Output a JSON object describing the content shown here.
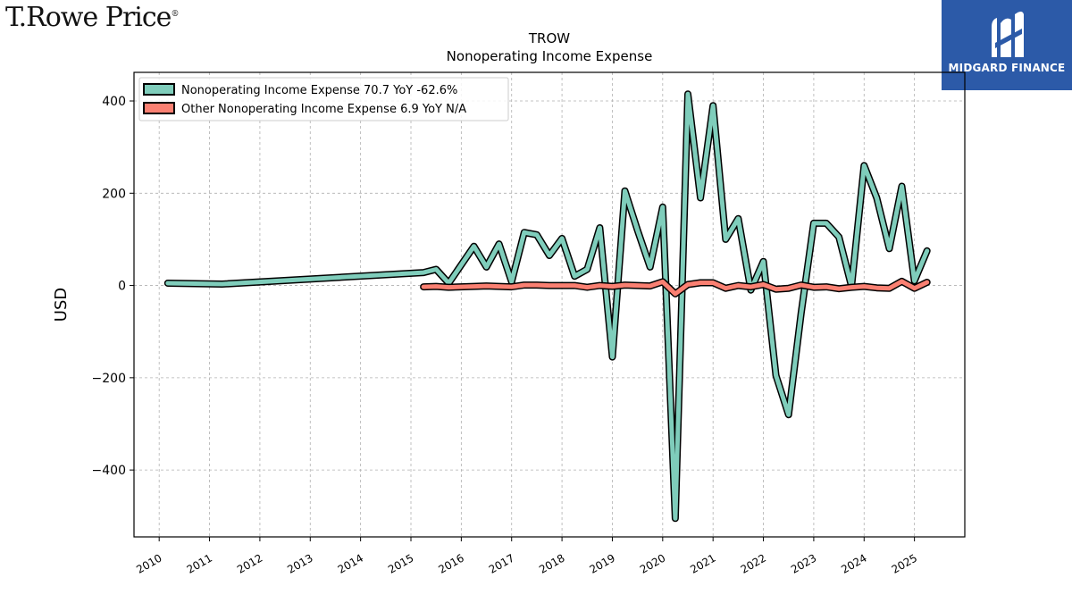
{
  "brand": {
    "name": "T.Rowe Price",
    "registered": "®"
  },
  "watermark": {
    "text": "MIDGARD FINANCE",
    "color": "#2c5aa8"
  },
  "chart_data": {
    "type": "line",
    "title": "TROW",
    "subtitle": "Nonoperating Income Expense",
    "xlabel": "",
    "ylabel": "USD",
    "xlim": [
      2009.5,
      2026.0
    ],
    "ylim": [
      -545,
      462
    ],
    "grid": true,
    "legend_position": "top-left",
    "x_ticks": [
      2010,
      2011,
      2012,
      2013,
      2014,
      2015,
      2016,
      2017,
      2018,
      2019,
      2020,
      2021,
      2022,
      2023,
      2024,
      2025
    ],
    "y_ticks": [
      -400,
      -200,
      0,
      200,
      400
    ],
    "y_tick_labels": [
      "−400",
      "−200",
      "0",
      "200",
      "400"
    ],
    "series": [
      {
        "name": "Nonoperating Income Expense",
        "legend_label": "Nonoperating Income Expense  70.7 YoY -62.6%",
        "color": "#7fcdbb",
        "x": [
          2010.17,
          2011.25,
          2015.25,
          2015.5,
          2015.75,
          2016.25,
          2016.5,
          2016.75,
          2017.0,
          2017.25,
          2017.5,
          2017.75,
          2018.0,
          2018.25,
          2018.5,
          2018.75,
          2019.0,
          2019.25,
          2019.5,
          2019.75,
          2020.0,
          2020.25,
          2020.5,
          2020.75,
          2021.0,
          2021.25,
          2021.5,
          2021.75,
          2022.0,
          2022.25,
          2022.5,
          2022.75,
          2023.0,
          2023.25,
          2023.5,
          2023.75,
          2024.0,
          2024.25,
          2024.5,
          2024.75,
          2025.0,
          2025.25
        ],
        "values": [
          5,
          3,
          28,
          35,
          5,
          85,
          40,
          90,
          8,
          115,
          110,
          65,
          102,
          20,
          35,
          125,
          -155,
          205,
          120,
          40,
          170,
          -505,
          415,
          190,
          390,
          100,
          145,
          -10,
          52,
          -195,
          -280,
          -60,
          135,
          135,
          105,
          -2,
          260,
          190,
          80,
          215,
          10,
          75
        ]
      },
      {
        "name": "Other Nonoperating Income Expense",
        "legend_label": "Other Nonoperating Income Expense  6.9 YoY N/A",
        "color": "#fa8072",
        "x": [
          2015.25,
          2015.5,
          2015.75,
          2016.25,
          2016.5,
          2016.75,
          2017.0,
          2017.25,
          2017.5,
          2017.75,
          2018.0,
          2018.25,
          2018.5,
          2018.75,
          2019.0,
          2019.25,
          2019.5,
          2019.75,
          2020.0,
          2020.25,
          2020.5,
          2020.75,
          2021.0,
          2021.25,
          2021.5,
          2021.75,
          2022.0,
          2022.25,
          2022.5,
          2022.75,
          2023.0,
          2023.25,
          2023.5,
          2023.75,
          2024.0,
          2024.25,
          2024.5,
          2024.75,
          2025.0,
          2025.25
        ],
        "values": [
          -3,
          -2,
          -4,
          -2,
          -1,
          -2,
          -3,
          1,
          1,
          0,
          0,
          0,
          -4,
          0,
          -2,
          1,
          0,
          -1,
          8,
          -18,
          2,
          6,
          6,
          -6,
          0,
          -3,
          2,
          -8,
          -6,
          1,
          -4,
          -3,
          -7,
          -4,
          -2,
          -5,
          -6,
          9,
          -6,
          7
        ]
      }
    ]
  }
}
